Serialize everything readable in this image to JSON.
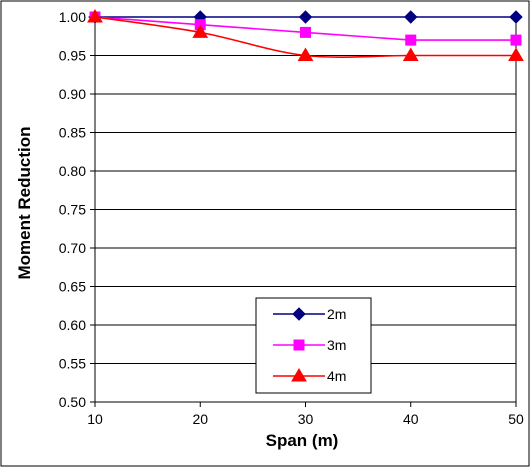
{
  "chart_data": {
    "type": "line",
    "title": "",
    "xlabel": "Span (m)",
    "ylabel": "Moment Reduction",
    "x": [
      10,
      20,
      30,
      40,
      50
    ],
    "x_tick_labels": [
      "10",
      "20",
      "30",
      "40",
      "50"
    ],
    "xlim": [
      10,
      50
    ],
    "ylim": [
      0.5,
      1.0
    ],
    "y_tick_labels": [
      "0.50",
      "0.55",
      "0.60",
      "0.65",
      "0.70",
      "0.75",
      "0.80",
      "0.85",
      "0.90",
      "0.95",
      "1.00"
    ],
    "grid": "horizontal",
    "legend_position": "bottom-center",
    "series": [
      {
        "name": "2m",
        "values": [
          1.0,
          1.0,
          1.0,
          1.0,
          1.0
        ],
        "color": "#000080",
        "marker": "diamond",
        "smooth": false
      },
      {
        "name": "3m",
        "values": [
          1.0,
          0.99,
          0.98,
          0.97,
          0.97
        ],
        "color": "#FF00FF",
        "marker": "square",
        "smooth": false
      },
      {
        "name": "4m",
        "values": [
          1.0,
          0.98,
          0.95,
          0.95,
          0.95
        ],
        "color": "#FF0000",
        "marker": "triangle",
        "smooth": true
      }
    ]
  }
}
